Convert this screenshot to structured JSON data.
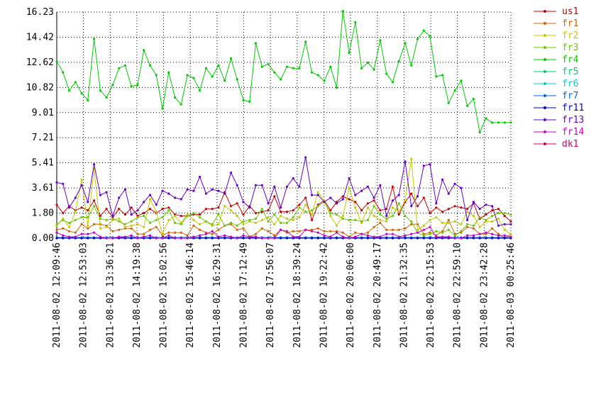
{
  "chart_data": {
    "type": "line",
    "title": "",
    "xlabel": "",
    "ylabel": "",
    "ylim": [
      0,
      16.23
    ],
    "yticks": [
      "0.00",
      "1.80",
      "3.61",
      "5.41",
      "7.21",
      "9.01",
      "10.82",
      "12.62",
      "14.42",
      "16.23"
    ],
    "xticks": [
      "2011-08-02 12:09:46",
      "2011-08-02 12:53:03",
      "2011-08-02 13:36:21",
      "2011-08-02 14:19:38",
      "2011-08-02 15:02:56",
      "2011-08-02 15:46:14",
      "2011-08-02 16:29:31",
      "2011-08-02 17:12:49",
      "2011-08-02 17:56:07",
      "2011-08-02 18:39:24",
      "2011-08-02 19:22:42",
      "2011-08-02 20:06:00",
      "2011-08-02 20:49:17",
      "2011-08-02 21:32:35",
      "2011-08-02 22:15:53",
      "2011-08-02 22:59:10",
      "2011-08-02 23:42:28",
      "2011-08-03 00:25:46"
    ],
    "grid": true,
    "legend_position": "right",
    "series": [
      {
        "name": "us1",
        "color": "#cc0000",
        "values": [
          2.4,
          1.8,
          2.3,
          2.0,
          2.2,
          2.0,
          2.7,
          1.6,
          2.1,
          1.5,
          2.1,
          1.7,
          2.2,
          1.6,
          1.8,
          2.1,
          1.8,
          2.1,
          2.2,
          1.7,
          1.6,
          1.6,
          1.7,
          1.7,
          2.1,
          2.1,
          2.2,
          3.3,
          2.3,
          2.5,
          1.7,
          2.3,
          1.8,
          1.9,
          2.0,
          3.0,
          1.9,
          1.9,
          2.0,
          2.4,
          2.9,
          1.3,
          2.4,
          2.7,
          2.0,
          2.6,
          3.0,
          2.8,
          2.6,
          2.0,
          2.5,
          2.7,
          2.0,
          2.1,
          3.7,
          1.7,
          2.6,
          3.2,
          2.3,
          2.9,
          1.8,
          2.2,
          1.9,
          2.1,
          2.3,
          2.2,
          2.1,
          2.5,
          1.4,
          1.7,
          2.0,
          2.1,
          1.6,
          1.2
        ]
      },
      {
        "name": "fr1",
        "color": "#cc6600",
        "values": [
          0.6,
          0.7,
          0.5,
          0.4,
          1.0,
          0.7,
          1.0,
          1.0,
          0.9,
          0.5,
          0.6,
          0.7,
          0.7,
          0.3,
          0.3,
          0.6,
          0.8,
          0.2,
          0.4,
          0.4,
          0.4,
          0.2,
          0.9,
          0.6,
          0.4,
          0.3,
          0.6,
          0.9,
          1.0,
          0.6,
          0.7,
          0.1,
          0.3,
          0.7,
          0.5,
          0.2,
          0.6,
          0.4,
          0.5,
          0.5,
          0.6,
          0.6,
          0.7,
          0.5,
          0.5,
          0.5,
          0.4,
          0.1,
          0.4,
          0.3,
          0.4,
          0.8,
          1.1,
          0.6,
          0.6,
          0.6,
          0.7,
          1.0,
          1.0,
          0.3,
          0.4,
          0.2,
          0.5,
          1.3,
          0.3,
          0.4,
          0.8,
          0.7,
          0.3,
          0.3,
          0.7,
          0.3,
          0.0,
          0.3
        ]
      },
      {
        "name": "fr2",
        "color": "#c8c800",
        "values": [
          0.9,
          1.4,
          0.8,
          1.9,
          4.2,
          0.9,
          5.0,
          0.7,
          0.8,
          1.3,
          1.4,
          0.8,
          0.9,
          1.0,
          0.8,
          2.8,
          1.9,
          0.3,
          1.3,
          1.6,
          1.1,
          1.7,
          1.3,
          1.0,
          1.2,
          0.9,
          1.0,
          2.3,
          2.0,
          1.6,
          1.0,
          1.2,
          1.1,
          1.3,
          1.5,
          1.0,
          1.6,
          1.4,
          1.3,
          1.5,
          2.4,
          1.7,
          3.3,
          2.7,
          1.6,
          0.9,
          1.6,
          3.6,
          2.2,
          1.1,
          2.2,
          1.6,
          1.3,
          1.2,
          2.2,
          1.9,
          2.7,
          5.7,
          0.6,
          0.9,
          1.3,
          1.5,
          1.1,
          1.1,
          1.2,
          1.0,
          1.9,
          1.6,
          0.8,
          1.2,
          1.2,
          1.4,
          0.6,
          0.3
        ]
      },
      {
        "name": "fr3",
        "color": "#66cc00",
        "values": [
          1.0,
          1.3,
          1.1,
          1.3,
          1.5,
          1.5,
          2.3,
          1.4,
          1.3,
          1.4,
          1.2,
          1.0,
          1.2,
          1.5,
          1.6,
          1.1,
          1.3,
          1.5,
          2.0,
          1.1,
          1.0,
          1.6,
          1.8,
          1.5,
          1.2,
          1.0,
          1.7,
          0.9,
          1.1,
          0.9,
          1.2,
          1.3,
          1.4,
          2.1,
          1.2,
          1.7,
          1.1,
          1.1,
          1.5,
          2.2,
          1.9,
          2.0,
          2.3,
          2.6,
          1.8,
          1.7,
          1.4,
          1.3,
          1.3,
          1.2,
          1.3,
          2.3,
          1.7,
          1.4,
          1.6,
          2.5,
          1.6,
          1.2,
          0.4,
          0.2,
          0.3,
          0.5,
          0.4,
          0.6,
          0.2,
          0.5,
          1.0,
          0.9,
          1.5,
          1.3,
          1.6,
          1.8,
          1.8,
          1.7
        ]
      },
      {
        "name": "fr4",
        "color": "#00cc00",
        "values": [
          12.7,
          11.9,
          10.6,
          11.2,
          10.4,
          9.9,
          14.3,
          10.6,
          10.1,
          11.0,
          12.2,
          12.4,
          10.9,
          11.0,
          13.5,
          12.4,
          11.7,
          9.3,
          11.9,
          10.1,
          9.6,
          11.7,
          11.5,
          10.6,
          12.2,
          11.6,
          12.4,
          11.3,
          12.9,
          11.4,
          9.9,
          9.8,
          14.0,
          12.3,
          12.5,
          11.9,
          11.4,
          12.3,
          12.2,
          12.2,
          14.1,
          11.9,
          11.7,
          11.3,
          12.3,
          10.8,
          16.3,
          13.3,
          15.5,
          12.2,
          12.6,
          12.1,
          14.2,
          11.8,
          11.2,
          12.7,
          14.0,
          12.4,
          14.3,
          14.9,
          14.5,
          11.6,
          11.7,
          9.7,
          10.6,
          11.3,
          9.5,
          10.0,
          7.6,
          8.6,
          8.3,
          8.3,
          8.3,
          8.3
        ]
      },
      {
        "name": "fr5",
        "color": "#00cc66",
        "values": []
      },
      {
        "name": "fr6",
        "color": "#00cccc",
        "values": []
      },
      {
        "name": "fr7",
        "color": "#0066cc",
        "values": [
          0.05,
          0.05,
          0.05,
          0.05,
          0.05,
          0.05,
          0.05,
          0.05,
          0.05,
          0.05,
          0.05,
          0.05,
          0.05,
          0.05,
          0.05,
          0.05,
          0.05,
          0.05,
          0.05,
          0.05,
          0.05,
          0.05,
          0.05,
          0.05,
          0.05,
          0.05,
          0.05,
          0.05,
          0.05,
          0.05,
          0.05,
          0.05,
          0.05,
          0.05,
          0.05,
          0.05,
          0.05,
          0.05,
          0.05,
          0.05,
          0.05,
          0.05,
          0.05,
          0.05,
          0.05,
          0.05,
          0.05,
          0.05,
          0.05,
          0.05,
          0.05,
          0.05,
          0.05,
          0.05,
          0.05,
          0.05,
          0.05,
          0.05,
          0.05,
          0.05,
          0.05,
          0.05,
          0.05,
          0.05,
          0.05,
          0.05,
          0.05,
          0.05,
          0.05,
          0.05,
          0.05,
          0.05,
          0.05,
          0.05
        ]
      },
      {
        "name": "fr11",
        "color": "#0000cc",
        "values": [
          0.0,
          0.0,
          0.0,
          0.0,
          0.0,
          0.0,
          0.0,
          0.0,
          0.0,
          0.0,
          0.0,
          0.0,
          0.0,
          0.0,
          0.0,
          0.0,
          0.0,
          0.0,
          0.0,
          0.0,
          0.0,
          0.0,
          0.0,
          0.0,
          0.0,
          0.0,
          0.0,
          0.0,
          0.0,
          0.0,
          0.0,
          0.0,
          0.0,
          0.0,
          0.0,
          0.0,
          0.0,
          0.0,
          0.0,
          0.0,
          0.0,
          0.0,
          0.0,
          0.0,
          0.0,
          0.0,
          0.0,
          0.0,
          0.0,
          0.0,
          0.0,
          0.0,
          0.0,
          0.0,
          0.0,
          0.0,
          0.0,
          0.0,
          0.0,
          0.0,
          0.0,
          0.0,
          0.0,
          0.0,
          0.0,
          0.0,
          0.0,
          0.0,
          0.0,
          0.0,
          0.0,
          0.0,
          0.0,
          0.0
        ]
      },
      {
        "name": "fr13",
        "color": "#6600cc",
        "values": [
          4.0,
          3.9,
          2.2,
          2.9,
          3.8,
          2.6,
          5.3,
          3.1,
          3.3,
          1.6,
          2.9,
          3.5,
          1.7,
          2.0,
          2.6,
          3.1,
          2.4,
          3.4,
          3.2,
          2.9,
          2.8,
          3.5,
          3.4,
          4.4,
          3.2,
          3.5,
          3.4,
          3.2,
          4.7,
          3.8,
          2.6,
          2.2,
          3.8,
          3.8,
          2.5,
          3.7,
          2.2,
          3.7,
          4.3,
          3.7,
          5.8,
          3.1,
          3.1,
          2.6,
          2.9,
          2.5,
          2.8,
          4.3,
          3.1,
          3.4,
          3.7,
          2.9,
          3.8,
          1.6,
          2.7,
          3.1,
          5.5,
          2.3,
          3.0,
          5.2,
          5.3,
          2.5,
          4.2,
          3.2,
          3.9,
          3.6,
          1.3,
          2.6,
          2.1,
          2.4,
          2.3,
          0.9,
          1.0,
          1.0
        ]
      },
      {
        "name": "fr14",
        "color": "#cc00cc",
        "values": [
          0.4,
          0.2,
          0.1,
          0.1,
          0.3,
          0.3,
          0.4,
          0.1,
          0.0,
          0.0,
          0.1,
          0.1,
          0.2,
          0.0,
          0.1,
          0.2,
          0.0,
          0.0,
          0.2,
          0.0,
          0.0,
          0.0,
          0.1,
          0.2,
          0.3,
          0.5,
          0.1,
          0.2,
          0.1,
          0.0,
          0.2,
          0.1,
          0.1,
          0.0,
          0.0,
          0.0,
          0.6,
          0.5,
          0.1,
          0.1,
          0.6,
          0.5,
          0.4,
          0.2,
          0.1,
          0.4,
          0.1,
          0.0,
          0.1,
          0.3,
          0.2,
          0.1,
          0.1,
          0.3,
          0.3,
          0.1,
          0.2,
          0.3,
          0.4,
          0.6,
          0.8,
          0.1,
          0.1,
          0.1,
          0.0,
          0.0,
          0.2,
          0.2,
          0.3,
          0.4,
          0.3,
          0.2,
          0.2,
          0.1
        ]
      },
      {
        "name": "dk1",
        "color": "#cc0066",
        "values": []
      }
    ]
  }
}
